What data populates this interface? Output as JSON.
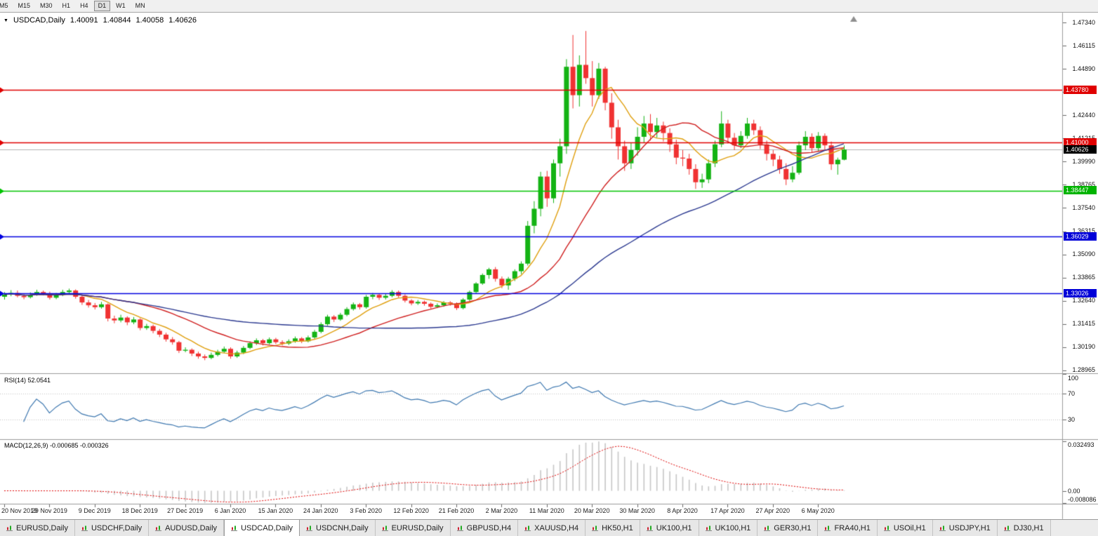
{
  "toolbar": {
    "timeframes": [
      "M5",
      "M15",
      "M30",
      "H1",
      "H4",
      "D1",
      "W1",
      "MN"
    ],
    "active": "D1"
  },
  "chart": {
    "symbol_label": "USDCAD,Daily",
    "ohlc": {
      "open": "1.40091",
      "high": "1.40844",
      "low": "1.40058",
      "close": "1.40626"
    },
    "price_axis": {
      "ticks": [
        "1.47340",
        "1.46115",
        "1.44890",
        "1.43665",
        "1.42440",
        "1.41215",
        "1.39990",
        "1.38765",
        "1.37540",
        "1.36315",
        "1.35090",
        "1.33865",
        "1.32640",
        "1.31415",
        "1.30190",
        "1.28965"
      ],
      "badges": [
        {
          "value": 1.4378,
          "label": "1.43780",
          "color": "#e00000"
        },
        {
          "value": 1.41,
          "label": "1.41000",
          "color": "#e00000"
        },
        {
          "value": 1.40626,
          "label": "1.40626",
          "color": "#000000"
        },
        {
          "value": 1.38447,
          "label": "1.38447",
          "color": "#00b400"
        },
        {
          "value": 1.36029,
          "label": "1.36029",
          "color": "#0000d8"
        },
        {
          "value": 1.33026,
          "label": "1.33026",
          "color": "#0000d8"
        }
      ]
    }
  },
  "indicators": {
    "rsi": {
      "label": "RSI(14) 52.0541",
      "axis": [
        {
          "v": 100,
          "label": "100"
        },
        {
          "v": 70,
          "label": "70"
        },
        {
          "v": 30,
          "label": "30"
        }
      ]
    },
    "macd": {
      "label": "MACD(12,26,9) -0.000685 -0.000326",
      "axis": [
        {
          "v": 0.032493,
          "label": "0.032493"
        },
        {
          "v": 0,
          "label": "0.00"
        },
        {
          "v": -0.008086,
          "label": "-0.008086"
        }
      ]
    }
  },
  "tabs": {
    "items": [
      "EURUSD,Daily",
      "USDCHF,Daily",
      "AUDUSD,Daily",
      "USDCAD,Daily",
      "USDCNH,Daily",
      "EURUSD,Daily",
      "GBPUSD,H4",
      "XAUUSD,H4",
      "HK50,H1",
      "UK100,H1",
      "UK100,H1",
      "GER30,H1",
      "FRA40,H1",
      "USOil,H1",
      "USDJPY,H1",
      "DJ30,H1"
    ],
    "active_index": 3
  },
  "colors": {
    "up": "#14b314",
    "down": "#f03232",
    "current_price_line": "#b4b4b4",
    "rsi_line": "#3e78b0",
    "rsi_levels": "#c4c4c4",
    "macd_hist": "#c6c6c6",
    "macd_signal": "#e00000",
    "separator": "#9c9c9c"
  },
  "chart_data": {
    "type": "candlestick",
    "symbol": "USDCAD",
    "timeframe": "Daily",
    "ylim": [
      1.2881,
      1.4786
    ],
    "bars_per_label": 7,
    "x_labels": [
      "20 Nov 2019",
      "29 Nov 2019",
      "9 Dec 2019",
      "18 Dec 2019",
      "27 Dec 2019",
      "6 Jan 2020",
      "15 Jan 2020",
      "24 Jan 2020",
      "3 Feb 2020",
      "12 Feb 2020",
      "21 Feb 2020",
      "2 Mar 2020",
      "11 Mar 2020",
      "20 Mar 2020",
      "30 Mar 2020",
      "8 Apr 2020",
      "17 Apr 2020",
      "27 Apr 2020",
      "6 May 2020"
    ],
    "overlays": {
      "moving_averages": [
        {
          "period": 8,
          "color": "#e0a010"
        },
        {
          "period": 21,
          "color": "#d02020"
        },
        {
          "period": 50,
          "color": "#2b3990"
        }
      ],
      "hlines": [
        {
          "value": 1.4378,
          "color": "#e00000"
        },
        {
          "value": 1.41,
          "color": "#e00000"
        },
        {
          "value": 1.38447,
          "color": "#00c400"
        },
        {
          "value": 1.36029,
          "color": "#0000e0"
        },
        {
          "value": 1.33026,
          "color": "#0000e0"
        }
      ],
      "current_price": 1.40626
    },
    "indicators": {
      "rsi": {
        "period": 14,
        "value": 52.0541,
        "levels": [
          70,
          30
        ]
      },
      "macd": {
        "fast": 12,
        "slow": 26,
        "signal": 9,
        "value": -0.000685,
        "signal_value": -0.000326,
        "display_max": 0.032493,
        "display_min": -0.008086
      }
    },
    "candles": [
      [
        1.3285,
        1.331,
        1.327,
        1.3297
      ],
      [
        1.3297,
        1.332,
        1.3288,
        1.3305
      ],
      [
        1.3305,
        1.3318,
        1.3282,
        1.329
      ],
      [
        1.329,
        1.3302,
        1.3272,
        1.3283
      ],
      [
        1.3283,
        1.3308,
        1.3276,
        1.3296
      ],
      [
        1.3296,
        1.3322,
        1.329,
        1.331
      ],
      [
        1.331,
        1.3318,
        1.3292,
        1.3302
      ],
      [
        1.3302,
        1.3312,
        1.327,
        1.328
      ],
      [
        1.328,
        1.3305,
        1.3272,
        1.3295
      ],
      [
        1.3295,
        1.3322,
        1.3288,
        1.331
      ],
      [
        1.331,
        1.3328,
        1.33,
        1.3318
      ],
      [
        1.3318,
        1.3324,
        1.3275,
        1.3285
      ],
      [
        1.3285,
        1.3292,
        1.3242,
        1.3255
      ],
      [
        1.3255,
        1.3268,
        1.3228,
        1.324
      ],
      [
        1.324,
        1.3252,
        1.3218,
        1.323
      ],
      [
        1.323,
        1.3258,
        1.3222,
        1.3245
      ],
      [
        1.3245,
        1.325,
        1.3155,
        1.317
      ],
      [
        1.317,
        1.3185,
        1.3145,
        1.316
      ],
      [
        1.316,
        1.319,
        1.315,
        1.3175
      ],
      [
        1.3175,
        1.3182,
        1.3135,
        1.315
      ],
      [
        1.315,
        1.3178,
        1.314,
        1.3165
      ],
      [
        1.3165,
        1.3172,
        1.3108,
        1.312
      ],
      [
        1.312,
        1.3142,
        1.311,
        1.313
      ],
      [
        1.313,
        1.3138,
        1.3092,
        1.3105
      ],
      [
        1.3105,
        1.3115,
        1.3072,
        1.3085
      ],
      [
        1.3085,
        1.3095,
        1.3048,
        1.306
      ],
      [
        1.306,
        1.3072,
        1.3032,
        1.3045
      ],
      [
        1.3045,
        1.3052,
        1.2988,
        1.3
      ],
      [
        1.3,
        1.3018,
        1.2992,
        1.3005
      ],
      [
        1.3005,
        1.3012,
        1.2972,
        1.2985
      ],
      [
        1.2985,
        1.2995,
        1.2958,
        1.297
      ],
      [
        1.297,
        1.298,
        1.295,
        1.2962
      ],
      [
        1.2962,
        1.299,
        1.2955,
        1.2978
      ],
      [
        1.2978,
        1.3005,
        1.297,
        1.2995
      ],
      [
        1.2995,
        1.3022,
        1.2988,
        1.301
      ],
      [
        1.301,
        1.3018,
        1.2958,
        1.297
      ],
      [
        1.297,
        1.3,
        1.2962,
        1.299
      ],
      [
        1.299,
        1.3025,
        1.2982,
        1.3015
      ],
      [
        1.3015,
        1.305,
        1.3008,
        1.304
      ],
      [
        1.304,
        1.3065,
        1.303,
        1.3055
      ],
      [
        1.3055,
        1.3062,
        1.3028,
        1.304
      ],
      [
        1.304,
        1.307,
        1.3032,
        1.306
      ],
      [
        1.306,
        1.3068,
        1.3035,
        1.3045
      ],
      [
        1.3045,
        1.3055,
        1.3028,
        1.3038
      ],
      [
        1.3038,
        1.306,
        1.303,
        1.305
      ],
      [
        1.305,
        1.3075,
        1.3042,
        1.3065
      ],
      [
        1.3065,
        1.3072,
        1.304,
        1.305
      ],
      [
        1.305,
        1.308,
        1.3044,
        1.307
      ],
      [
        1.307,
        1.311,
        1.3062,
        1.31
      ],
      [
        1.31,
        1.315,
        1.3092,
        1.314
      ],
      [
        1.314,
        1.319,
        1.3132,
        1.318
      ],
      [
        1.318,
        1.3188,
        1.3152,
        1.3165
      ],
      [
        1.3165,
        1.32,
        1.3158,
        1.319
      ],
      [
        1.319,
        1.323,
        1.3182,
        1.322
      ],
      [
        1.322,
        1.3255,
        1.3212,
        1.3245
      ],
      [
        1.3245,
        1.3252,
        1.3218,
        1.323
      ],
      [
        1.323,
        1.3295,
        1.3222,
        1.3285
      ],
      [
        1.3285,
        1.3305,
        1.3272,
        1.3295
      ],
      [
        1.3295,
        1.3302,
        1.3268,
        1.328
      ],
      [
        1.328,
        1.33,
        1.327,
        1.329
      ],
      [
        1.329,
        1.332,
        1.3282,
        1.331
      ],
      [
        1.331,
        1.3318,
        1.328,
        1.329
      ],
      [
        1.329,
        1.3298,
        1.3255,
        1.3265
      ],
      [
        1.3265,
        1.3272,
        1.324,
        1.325
      ],
      [
        1.325,
        1.3268,
        1.3242,
        1.3258
      ],
      [
        1.3258,
        1.3265,
        1.3238,
        1.3248
      ],
      [
        1.3248,
        1.3255,
        1.3222,
        1.3232
      ],
      [
        1.3232,
        1.325,
        1.3225,
        1.324
      ],
      [
        1.324,
        1.3262,
        1.3232,
        1.3255
      ],
      [
        1.3255,
        1.3262,
        1.3238,
        1.3248
      ],
      [
        1.3248,
        1.3255,
        1.3215,
        1.3225
      ],
      [
        1.3225,
        1.3278,
        1.3218,
        1.327
      ],
      [
        1.327,
        1.3318,
        1.3262,
        1.331
      ],
      [
        1.331,
        1.3362,
        1.3302,
        1.3355
      ],
      [
        1.3355,
        1.3408,
        1.3348,
        1.34
      ],
      [
        1.34,
        1.3438,
        1.338,
        1.343
      ],
      [
        1.343,
        1.3442,
        1.3365,
        1.338
      ],
      [
        1.338,
        1.3392,
        1.333,
        1.3345
      ],
      [
        1.3345,
        1.339,
        1.3322,
        1.338
      ],
      [
        1.338,
        1.343,
        1.3368,
        1.342
      ],
      [
        1.342,
        1.3472,
        1.3405,
        1.346
      ],
      [
        1.346,
        1.3685,
        1.345,
        1.366
      ],
      [
        1.366,
        1.379,
        1.362,
        1.375
      ],
      [
        1.375,
        1.3945,
        1.371,
        1.392
      ],
      [
        1.392,
        1.395,
        1.376,
        1.3805
      ],
      [
        1.3805,
        1.401,
        1.378,
        1.399
      ],
      [
        1.399,
        1.412,
        1.392,
        1.408
      ],
      [
        1.408,
        1.454,
        1.404,
        1.45
      ],
      [
        1.45,
        1.4668,
        1.428,
        1.435
      ],
      [
        1.435,
        1.456,
        1.429,
        1.451
      ],
      [
        1.451,
        1.4689,
        1.441,
        1.444
      ],
      [
        1.444,
        1.453,
        1.429,
        1.435
      ],
      [
        1.435,
        1.452,
        1.433,
        1.449
      ],
      [
        1.449,
        1.45,
        1.427,
        1.431
      ],
      [
        1.431,
        1.436,
        1.412,
        1.418
      ],
      [
        1.418,
        1.422,
        1.401,
        1.408
      ],
      [
        1.408,
        1.411,
        1.395,
        1.399
      ],
      [
        1.399,
        1.41,
        1.396,
        1.406
      ],
      [
        1.406,
        1.418,
        1.403,
        1.413
      ],
      [
        1.413,
        1.424,
        1.41,
        1.42
      ],
      [
        1.42,
        1.425,
        1.411,
        1.4155
      ],
      [
        1.4155,
        1.423,
        1.4125,
        1.419
      ],
      [
        1.419,
        1.421,
        1.4105,
        1.415
      ],
      [
        1.415,
        1.4175,
        1.405,
        1.409
      ],
      [
        1.409,
        1.4115,
        1.3985,
        1.402
      ],
      [
        1.402,
        1.406,
        1.3975,
        1.4015
      ],
      [
        1.4015,
        1.404,
        1.393,
        1.396
      ],
      [
        1.396,
        1.3985,
        1.3855,
        1.389
      ],
      [
        1.389,
        1.3935,
        1.386,
        1.3905
      ],
      [
        1.3905,
        1.401,
        1.3885,
        1.399
      ],
      [
        1.399,
        1.411,
        1.397,
        1.409
      ],
      [
        1.409,
        1.4265,
        1.4075,
        1.42
      ],
      [
        1.42,
        1.422,
        1.4095,
        1.4125
      ],
      [
        1.4125,
        1.415,
        1.406,
        1.4085
      ],
      [
        1.4085,
        1.416,
        1.407,
        1.4135
      ],
      [
        1.4135,
        1.423,
        1.412,
        1.42
      ],
      [
        1.42,
        1.422,
        1.414,
        1.4165
      ],
      [
        1.4165,
        1.4185,
        1.4065,
        1.409
      ],
      [
        1.409,
        1.411,
        1.4005,
        1.404
      ],
      [
        1.404,
        1.406,
        1.3975,
        1.401
      ],
      [
        1.401,
        1.403,
        1.3935,
        1.396
      ],
      [
        1.396,
        1.399,
        1.3875,
        1.3905
      ],
      [
        1.3905,
        1.3975,
        1.389,
        1.394
      ],
      [
        1.394,
        1.4105,
        1.393,
        1.4085
      ],
      [
        1.4085,
        1.416,
        1.406,
        1.413
      ],
      [
        1.413,
        1.4148,
        1.4048,
        1.407
      ],
      [
        1.407,
        1.4155,
        1.4052,
        1.4135
      ],
      [
        1.4135,
        1.4148,
        1.4062,
        1.4085
      ],
      [
        1.4085,
        1.4105,
        1.3955,
        1.3985
      ],
      [
        1.3985,
        1.402,
        1.393,
        1.4009
      ],
      [
        1.40091,
        1.40844,
        1.40058,
        1.40626
      ]
    ]
  }
}
